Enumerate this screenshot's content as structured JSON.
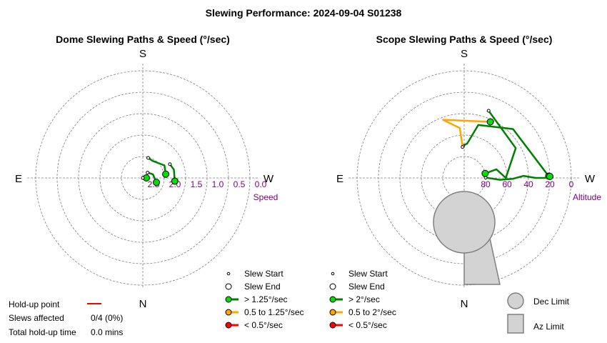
{
  "title": "Slewing Performance: 2024-09-04 S01238",
  "chart_data": [
    {
      "type": "polar-path",
      "title": "Dome Slewing Paths & Speed (°/sec)",
      "directions": {
        "top": "S",
        "bottom": "N",
        "left": "E",
        "right": "W"
      },
      "radial_label": "Speed",
      "radial_ticks": [
        "2.5",
        "2.0",
        "1.5",
        "1.0",
        "0.5",
        "0.0"
      ],
      "radial_range": [
        3.0,
        0.0
      ],
      "legend": {
        "start": "Slew Start",
        "end": "Slew End",
        "high": "> 1.25°/sec",
        "mid": "0.5 to 1.25°/sec",
        "low": "< 0.5°/sec"
      },
      "colors": {
        "high": "#008000",
        "mid": "#ffa500",
        "low": "#ff0000",
        "marker_fill": "#00e000"
      },
      "paths": [
        {
          "speed_class": "high",
          "points": [
            [
              0.2,
              2.9
            ],
            [
              0.14,
              3.0
            ]
          ]
        },
        {
          "speed_class": "high",
          "points": [
            [
              9.4,
              2.35
            ],
            [
              30,
              2.3
            ],
            [
              60,
              2.45
            ],
            [
              75,
              2.42
            ]
          ]
        },
        {
          "speed_class": "high",
          "points": [
            [
              -18,
              2.6
            ],
            [
              20,
              2.7
            ],
            [
              48,
              2.8
            ]
          ]
        },
        {
          "speed_class": "high",
          "points": [
            [
              -5.7,
              2.1
            ],
            [
              15,
              2.1
            ],
            [
              27,
              2.15
            ]
          ]
        }
      ]
    },
    {
      "type": "polar-path",
      "title": "Scope Slewing Paths & Speed (°/sec)",
      "directions": {
        "top": "S",
        "bottom": "N",
        "left": "E",
        "right": "W"
      },
      "radial_label": "Altitude",
      "radial_ticks": [
        "80",
        "60",
        "40",
        "20",
        "0"
      ],
      "radial_range": [
        90,
        0
      ],
      "legend": {
        "start": "Slew Start",
        "end": "Slew End",
        "high": "> 2°/sec",
        "mid": "0.5 to 2°/sec",
        "low": "< 0.5°/sec",
        "dec_limit": "Dec Limit",
        "az_limit": "Az Limit"
      },
      "colors": {
        "high": "#008000",
        "mid": "#ffa500",
        "low": "#ff0000",
        "marker_fill": "#00e000",
        "limit_fill": "#d3d3d3",
        "limit_stroke": "#808080"
      },
      "paths": [
        {
          "speed_class": "high",
          "points": [
            [
              1.2,
              19
            ],
            [
              45,
              32
            ],
            [
              75,
              44
            ],
            [
              85,
              61
            ],
            [
              92,
              63
            ]
          ]
        },
        {
          "speed_class": "mid",
          "points": [
            [
              65,
              38
            ],
            [
              110,
              38
            ],
            [
              95,
              48
            ],
            [
              93,
              63
            ],
            [
              93,
              64
            ]
          ]
        },
        {
          "speed_class": "high",
          "points": [
            [
              1,
              18
            ],
            [
              0,
              20
            ],
            [
              0,
              30
            ],
            [
              2,
              40
            ],
            [
              -1,
              49
            ],
            [
              -3,
              60
            ],
            [
              1,
              72
            ]
          ]
        },
        {
          "speed_class": "high",
          "points": [
            [
              12,
              72
            ],
            [
              15,
              62
            ],
            [
              0,
              55
            ],
            [
              30,
              40
            ],
            [
              70,
              30
            ]
          ]
        }
      ]
    }
  ],
  "holdup": {
    "point_label": "Hold-up point",
    "slews_label": "Slews affected",
    "slews_value": "0/4 (0%)",
    "total_label": "Total hold-up time",
    "total_value": "0.0 mins"
  }
}
